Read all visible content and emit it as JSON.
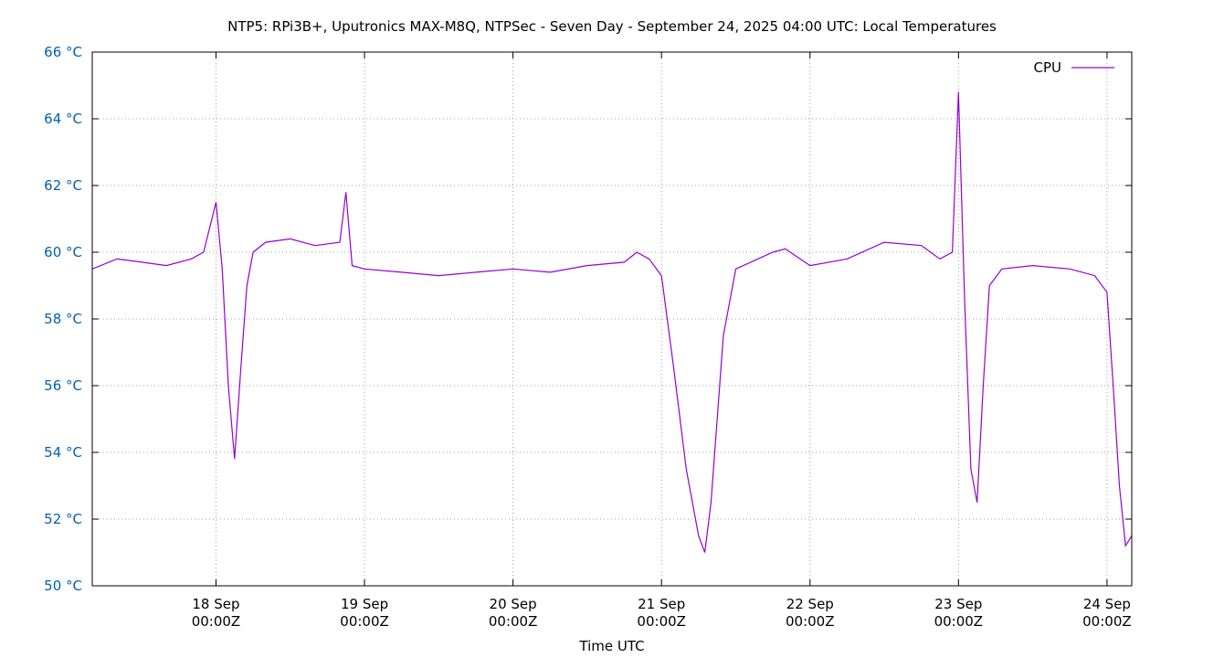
{
  "chart_data": {
    "type": "line",
    "title": "NTP5: RPi3B+, Uputronics MAX-M8Q, NTPSec - Seven Day - September 24, 2025 04:00 UTC: Local Temperatures",
    "xlabel": "Time UTC",
    "ylabel": "",
    "ylim": [
      50,
      66
    ],
    "xlim": [
      "2025-09-17 04:00",
      "2025-09-24 04:00"
    ],
    "grid": true,
    "legend_position": "top-right",
    "y_ticks": [
      "50 °C",
      "52 °C",
      "54 °C",
      "56 °C",
      "58 °C",
      "60 °C",
      "62 °C",
      "64 °C",
      "66 °C"
    ],
    "y_tick_values": [
      50,
      52,
      54,
      56,
      58,
      60,
      62,
      64,
      66
    ],
    "x_ticks": [
      {
        "date": "2025-09-18 00:00",
        "line1": "18 Sep",
        "line2": "00:00Z"
      },
      {
        "date": "2025-09-19 00:00",
        "line1": "19 Sep",
        "line2": "00:00Z"
      },
      {
        "date": "2025-09-20 00:00",
        "line1": "20 Sep",
        "line2": "00:00Z"
      },
      {
        "date": "2025-09-21 00:00",
        "line1": "21 Sep",
        "line2": "00:00Z"
      },
      {
        "date": "2025-09-22 00:00",
        "line1": "22 Sep",
        "line2": "00:00Z"
      },
      {
        "date": "2025-09-23 00:00",
        "line1": "23 Sep",
        "line2": "00:00Z"
      },
      {
        "date": "2025-09-24 00:00",
        "line1": "24 Sep",
        "line2": "00:00Z"
      }
    ],
    "series": [
      {
        "name": "CPU",
        "color": "#9400d3",
        "x": [
          "2025-09-17 04:00",
          "2025-09-17 08:00",
          "2025-09-17 12:00",
          "2025-09-17 16:00",
          "2025-09-17 20:00",
          "2025-09-17 22:00",
          "2025-09-18 00:00",
          "2025-09-18 01:00",
          "2025-09-18 02:00",
          "2025-09-18 03:00",
          "2025-09-18 04:00",
          "2025-09-18 05:00",
          "2025-09-18 06:00",
          "2025-09-18 08:00",
          "2025-09-18 12:00",
          "2025-09-18 16:00",
          "2025-09-18 20:00",
          "2025-09-18 21:00",
          "2025-09-18 22:00",
          "2025-09-19 00:00",
          "2025-09-19 06:00",
          "2025-09-19 12:00",
          "2025-09-19 18:00",
          "2025-09-20 00:00",
          "2025-09-20 06:00",
          "2025-09-20 12:00",
          "2025-09-20 18:00",
          "2025-09-20 20:00",
          "2025-09-20 22:00",
          "2025-09-21 00:00",
          "2025-09-21 02:00",
          "2025-09-21 04:00",
          "2025-09-21 06:00",
          "2025-09-21 07:00",
          "2025-09-21 08:00",
          "2025-09-21 10:00",
          "2025-09-21 12:00",
          "2025-09-21 18:00",
          "2025-09-21 20:00",
          "2025-09-22 00:00",
          "2025-09-22 06:00",
          "2025-09-22 12:00",
          "2025-09-22 18:00",
          "2025-09-22 21:00",
          "2025-09-22 23:00",
          "2025-09-23 00:00",
          "2025-09-23 01:00",
          "2025-09-23 02:00",
          "2025-09-23 03:00",
          "2025-09-23 04:00",
          "2025-09-23 05:00",
          "2025-09-23 07:00",
          "2025-09-23 12:00",
          "2025-09-23 18:00",
          "2025-09-23 22:00",
          "2025-09-24 00:00",
          "2025-09-24 01:00",
          "2025-09-24 02:00",
          "2025-09-24 03:00",
          "2025-09-24 04:00"
        ],
        "y": [
          59.5,
          59.8,
          59.7,
          59.6,
          59.8,
          60.0,
          61.5,
          59.5,
          56.0,
          53.8,
          56.5,
          59.0,
          60.0,
          60.3,
          60.4,
          60.2,
          60.3,
          61.8,
          59.6,
          59.5,
          59.4,
          59.3,
          59.4,
          59.5,
          59.4,
          59.6,
          59.7,
          60.0,
          59.8,
          59.3,
          56.5,
          53.5,
          51.5,
          51.0,
          52.5,
          57.5,
          59.5,
          60.0,
          60.1,
          59.6,
          59.8,
          60.3,
          60.2,
          59.8,
          60.0,
          64.8,
          58.5,
          53.5,
          52.5,
          56.0,
          59.0,
          59.5,
          59.6,
          59.5,
          59.3,
          58.8,
          56.0,
          53.0,
          51.2,
          51.5
        ]
      }
    ]
  }
}
